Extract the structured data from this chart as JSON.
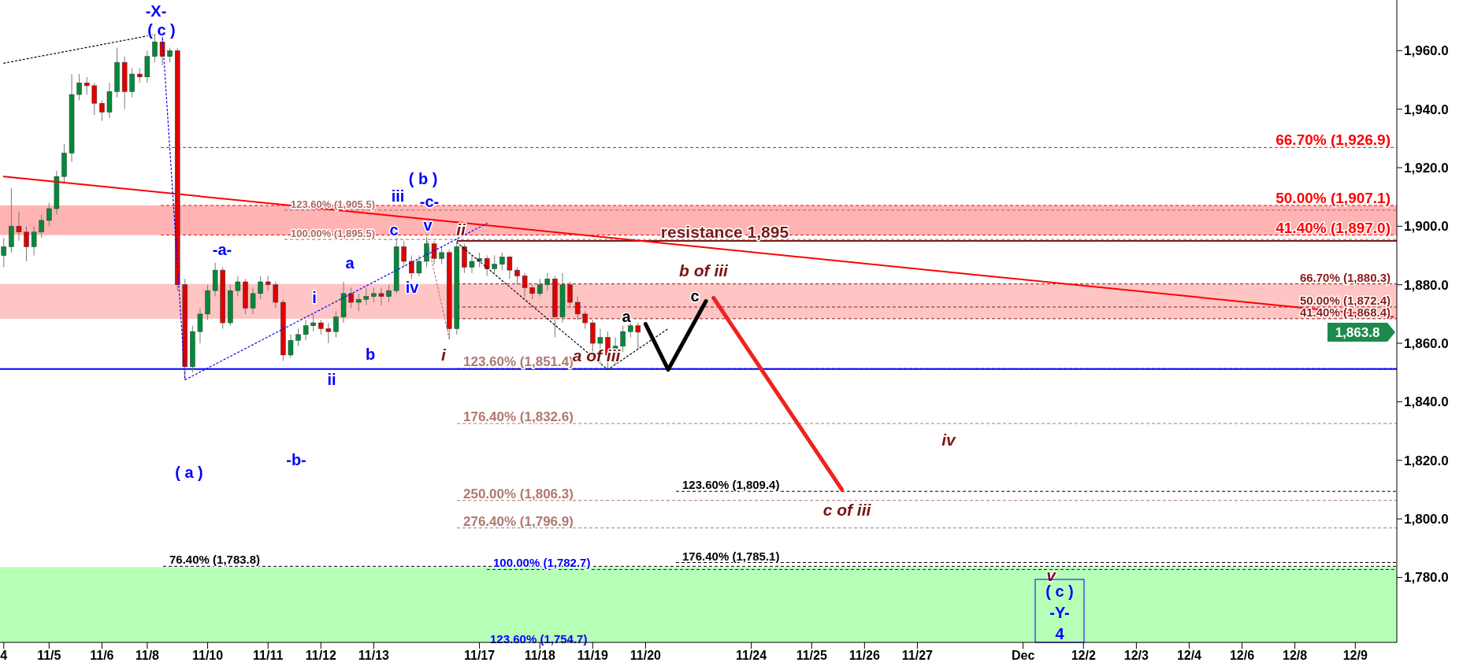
{
  "chart_data": {
    "type": "candlestick",
    "categories": [
      "4",
      null,
      null,
      null,
      null,
      null,
      "11/5",
      null,
      null,
      null,
      null,
      null,
      null,
      "11/6",
      null,
      null,
      null,
      null,
      null,
      "11/8",
      null,
      null,
      null,
      null,
      null,
      null,
      null,
      "11/10",
      null,
      null,
      null,
      null,
      null,
      null,
      null,
      "11/11",
      null,
      null,
      null,
      null,
      null,
      null,
      "11/12",
      null,
      null,
      null,
      null,
      null,
      null,
      "11/13",
      null,
      null,
      null,
      null,
      null,
      null,
      null,
      null,
      null,
      null,
      null,
      null,
      null,
      "11/17",
      null,
      null,
      null,
      null,
      null,
      null,
      null,
      "11/18",
      null,
      null,
      null,
      null,
      null,
      null,
      "11/19",
      null,
      null,
      null,
      null,
      null,
      null,
      "11/20",
      null,
      null,
      null,
      null,
      null,
      null,
      null,
      null,
      null,
      null,
      null,
      null,
      null,
      "11/24",
      null,
      null,
      null,
      null,
      null,
      null,
      null,
      "11/25",
      null,
      null,
      null,
      null,
      null,
      null,
      "11/26",
      null,
      null,
      null,
      null,
      null,
      null,
      "11/27",
      null,
      null,
      null,
      null,
      null,
      null,
      null,
      null,
      null,
      null,
      null,
      null,
      null,
      "Dec",
      null,
      null,
      null,
      null,
      null,
      null,
      null,
      "12/2",
      null,
      null,
      null,
      null,
      null,
      null,
      "12/3",
      null,
      null,
      null,
      null,
      null,
      null,
      "12/4",
      null,
      null,
      null,
      null,
      null,
      null,
      "12/6",
      null,
      null,
      null,
      null,
      null,
      null,
      "12/8",
      null,
      null,
      null,
      null,
      null,
      null,
      null,
      "12/9",
      null,
      null,
      null,
      null,
      null
    ],
    "ylim": [
      1757.8,
      1977.3
    ],
    "yticks": [
      {
        "value": 1780,
        "label": "1,780.0"
      },
      {
        "value": 1800,
        "label": "1,800.0"
      },
      {
        "value": 1820,
        "label": "1,820.0"
      },
      {
        "value": 1840,
        "label": "1,840.0"
      },
      {
        "value": 1860,
        "label": "1,860.0"
      },
      {
        "value": 1880,
        "label": "1,880.0"
      },
      {
        "value": 1900,
        "label": "1,900.0"
      },
      {
        "value": 1920,
        "label": "1,920.0"
      },
      {
        "value": 1940,
        "label": "1,940.0"
      },
      {
        "value": 1960,
        "label": "1,960.0"
      }
    ],
    "ohlc": [
      [
        1890,
        1896,
        1886,
        1893
      ],
      [
        1893,
        1913,
        1891,
        1900
      ],
      [
        1900,
        1905,
        1895,
        1898
      ],
      [
        1898,
        1900,
        1888,
        1893
      ],
      [
        1893,
        1900,
        1890,
        1898
      ],
      [
        1898,
        1904,
        1896,
        1902
      ],
      [
        1902,
        1908,
        1900,
        1906
      ],
      [
        1906,
        1919,
        1904,
        1917
      ],
      [
        1917,
        1928,
        1915,
        1925
      ],
      [
        1925,
        1952,
        1922,
        1945
      ],
      [
        1945,
        1952,
        1943,
        1949
      ],
      [
        1949,
        1951,
        1945,
        1948
      ],
      [
        1948,
        1949,
        1938,
        1942
      ],
      [
        1942,
        1943,
        1936,
        1939
      ],
      [
        1939,
        1949,
        1937,
        1946
      ],
      [
        1946,
        1961,
        1944,
        1956
      ],
      [
        1956,
        1958,
        1940,
        1946
      ],
      [
        1946,
        1954,
        1944,
        1952
      ],
      [
        1952,
        1954,
        1949,
        1951
      ],
      [
        1951,
        1960,
        1949,
        1958
      ],
      [
        1958,
        1965.5,
        1956,
        1963
      ],
      [
        1963,
        1965,
        1955,
        1958
      ],
      [
        1958,
        1961,
        1956,
        1960
      ],
      [
        1960,
        1961,
        1878,
        1880
      ],
      [
        1880,
        1882,
        1847.5,
        1852
      ],
      [
        1852,
        1866,
        1850,
        1864
      ],
      [
        1864,
        1872,
        1860,
        1870
      ],
      [
        1870,
        1880,
        1868,
        1878
      ],
      [
        1878,
        1887.5,
        1876,
        1885
      ],
      [
        1885,
        1886,
        1865,
        1867
      ],
      [
        1867,
        1880,
        1866,
        1878
      ],
      [
        1878,
        1883,
        1876,
        1881
      ],
      [
        1881,
        1882,
        1870,
        1872
      ],
      [
        1872,
        1879,
        1870,
        1877
      ],
      [
        1877,
        1883,
        1875,
        1881
      ],
      [
        1881,
        1883,
        1878,
        1880
      ],
      [
        1880,
        1881,
        1872,
        1874
      ],
      [
        1874,
        1875,
        1854,
        1856
      ],
      [
        1856,
        1863,
        1855,
        1861
      ],
      [
        1861,
        1865,
        1859,
        1863
      ],
      [
        1863,
        1868,
        1861,
        1866
      ],
      [
        1866,
        1870,
        1864,
        1867
      ],
      [
        1867,
        1868,
        1863,
        1865
      ],
      [
        1865,
        1867,
        1860,
        1864
      ],
      [
        1864,
        1871,
        1862,
        1869
      ],
      [
        1869,
        1881,
        1867,
        1877
      ],
      [
        1877,
        1879,
        1872,
        1874
      ],
      [
        1874,
        1877,
        1871,
        1875
      ],
      [
        1875,
        1879,
        1873,
        1876
      ],
      [
        1876,
        1879,
        1874,
        1877
      ],
      [
        1877,
        1879,
        1873,
        1876
      ],
      [
        1876,
        1880,
        1874,
        1878
      ],
      [
        1878,
        1896,
        1877,
        1893
      ],
      [
        1893,
        1895,
        1886,
        1888
      ],
      [
        1888,
        1890,
        1882,
        1884
      ],
      [
        1884,
        1890,
        1883,
        1888
      ],
      [
        1888,
        1896.2,
        1886,
        1894
      ],
      [
        1894,
        1895,
        1887,
        1889
      ],
      [
        1889,
        1893,
        1887,
        1891
      ],
      [
        1891,
        1892,
        1861.5,
        1865
      ],
      [
        1865,
        1894.5,
        1863,
        1893
      ],
      [
        1893,
        1894,
        1884,
        1886
      ],
      [
        1886,
        1890,
        1884,
        1888
      ],
      [
        1888,
        1891,
        1886,
        1889
      ],
      [
        1889,
        1890,
        1883,
        1885.5
      ],
      [
        1885.5,
        1890,
        1884,
        1887
      ],
      [
        1887,
        1891,
        1885,
        1889.5
      ],
      [
        1889.5,
        1890,
        1882,
        1885
      ],
      [
        1885,
        1886,
        1880,
        1883
      ],
      [
        1883,
        1884,
        1876,
        1879
      ],
      [
        1879,
        1880,
        1875,
        1877
      ],
      [
        1877,
        1882,
        1876,
        1880
      ],
      [
        1880,
        1884,
        1878,
        1882
      ],
      [
        1882,
        1883,
        1862,
        1869
      ],
      [
        1869,
        1884,
        1867,
        1880
      ],
      [
        1880,
        1881,
        1872,
        1874
      ],
      [
        1874,
        1876,
        1868,
        1870
      ],
      [
        1870,
        1871,
        1865,
        1867
      ],
      [
        1867,
        1868,
        1854,
        1860
      ],
      [
        1860,
        1865,
        1853,
        1862
      ],
      [
        1862,
        1864,
        1851,
        1856
      ],
      [
        1856,
        1862,
        1853,
        1859
      ],
      [
        1859,
        1866,
        1857,
        1864
      ],
      [
        1864,
        1867,
        1862,
        1866
      ],
      [
        1866,
        1867,
        1858,
        1863.8
      ],
      null,
      null,
      null,
      null,
      null,
      null,
      null,
      null,
      null,
      null,
      null,
      null,
      null,
      null,
      null,
      null,
      null,
      null,
      null,
      null,
      null,
      null,
      null,
      null,
      null,
      null,
      null,
      null,
      null,
      null,
      null,
      null,
      null,
      null,
      null,
      null,
      null,
      null,
      null,
      null,
      null,
      null,
      null,
      null,
      null,
      null,
      null,
      null,
      null,
      null,
      null,
      null,
      null,
      null,
      null,
      null,
      null,
      null,
      null,
      null,
      null,
      null,
      null,
      null,
      null,
      null,
      null,
      null,
      null,
      null,
      null,
      null,
      null,
      null,
      null,
      null,
      null,
      null,
      null,
      null,
      null,
      null,
      null,
      null,
      null,
      null,
      null,
      null,
      null,
      null,
      null,
      null,
      null,
      null,
      null,
      null,
      null,
      null,
      null,
      null
    ],
    "series": [
      {
        "type": "line",
        "color": "#ff0000",
        "line_style": "solid",
        "values": [
          1917.0,
          null,
          null,
          null,
          null,
          null,
          null,
          null,
          null,
          null,
          null,
          null,
          null,
          null,
          null,
          null,
          null,
          null,
          null,
          null,
          null,
          null,
          null,
          null,
          null,
          null,
          null,
          null,
          null,
          null,
          null,
          null,
          null,
          null,
          null,
          null,
          null,
          null,
          null,
          null,
          null,
          null,
          null,
          null,
          null,
          null,
          null,
          null,
          null,
          null,
          null,
          null,
          null,
          null,
          null,
          null,
          null,
          null,
          null,
          null,
          null,
          null,
          null,
          null,
          null,
          null,
          null,
          null,
          null,
          null,
          null,
          null,
          null,
          null,
          null,
          null,
          null,
          null,
          null,
          null,
          null,
          null,
          null,
          null,
          null,
          null,
          null,
          null,
          null,
          null,
          null,
          null,
          null,
          null,
          null,
          null,
          null,
          null,
          null,
          null,
          null,
          null,
          null,
          null,
          null,
          null,
          null,
          null,
          null,
          null,
          null,
          null,
          null,
          null,
          null,
          null,
          null,
          null,
          null,
          null,
          null,
          null,
          null,
          null,
          null,
          null,
          null,
          null,
          null,
          null,
          null,
          null,
          null,
          null,
          null,
          null,
          null,
          null,
          null,
          null,
          null,
          null,
          null,
          null,
          null,
          null,
          null,
          null,
          null,
          null,
          null,
          null,
          null,
          null,
          null,
          null,
          null,
          null,
          null,
          null,
          null,
          null,
          null,
          null,
          null,
          null,
          null,
          null,
          null,
          null,
          null,
          null,
          null,
          null,
          null,
          null,
          null,
          null,
          null,
          null,
          null,
          null,
          null,
          null,
          1869.0
        ]
      },
      {
        "type": "line",
        "color": "#000000",
        "line_style": "dotted",
        "values": [
          1955.7,
          null,
          null,
          null,
          null,
          null,
          null,
          null,
          null,
          null,
          null,
          null,
          null,
          null,
          null,
          null,
          null,
          null,
          null,
          null,
          1965.5,
          null,
          null,
          null,
          null,
          null,
          null,
          null,
          null,
          null,
          null,
          null,
          null,
          null,
          null,
          null,
          null,
          null,
          null,
          null,
          null,
          null,
          null,
          null,
          null,
          null,
          null,
          null,
          null,
          null,
          null,
          null,
          null,
          null,
          null,
          null,
          null,
          null,
          null,
          null,
          null,
          null,
          null,
          null,
          null,
          null,
          null,
          null,
          null,
          null,
          null,
          null,
          null,
          null,
          null,
          null,
          null,
          null,
          null,
          null,
          null,
          null,
          null,
          null,
          null,
          null,
          null,
          null,
          null,
          null,
          null,
          null,
          null,
          null,
          null,
          null,
          null,
          null,
          null,
          null,
          null,
          null,
          null,
          null,
          null,
          null,
          null,
          null,
          null,
          null,
          null,
          null,
          null,
          null,
          null,
          null,
          null,
          null,
          null,
          null,
          null,
          null,
          null,
          null,
          null,
          null,
          null,
          null,
          null,
          null,
          null,
          null,
          null,
          null,
          null,
          null,
          null,
          null,
          null,
          null,
          null,
          null,
          null,
          null,
          null,
          null,
          null,
          null,
          null,
          null,
          null,
          null,
          null,
          null,
          null,
          null,
          null,
          null,
          null,
          null,
          null,
          null,
          null,
          null,
          null,
          null,
          null,
          null,
          null,
          null,
          null,
          null,
          null,
          null,
          null,
          null,
          null,
          null,
          null,
          null,
          null,
          null,
          null,
          null,
          null
        ]
      },
      {
        "type": "line",
        "color": "#0000ff",
        "line_style": "dotted",
        "values": [
          null,
          null,
          null,
          null,
          null,
          null,
          null,
          null,
          null,
          null,
          null,
          null,
          null,
          null,
          null,
          null,
          null,
          null,
          null,
          null,
          null,
          1965.5,
          null,
          null,
          1847.5,
          null,
          null,
          null,
          null,
          null,
          null,
          null,
          null,
          null,
          null,
          null,
          null,
          null,
          null,
          null,
          null,
          null,
          null,
          null,
          null,
          null,
          null,
          null,
          null,
          null,
          null,
          null,
          null,
          null,
          null,
          null,
          null,
          null,
          null,
          null,
          null,
          null,
          null,
          null,
          1901,
          null,
          null,
          null,
          null,
          null,
          null,
          null,
          null,
          null,
          null,
          null,
          null,
          null,
          null,
          null,
          null,
          null,
          null,
          null,
          null,
          null,
          null,
          null,
          null,
          null,
          null,
          null,
          null,
          null,
          null,
          null,
          null,
          null,
          null,
          null,
          null,
          null,
          null,
          null,
          null,
          null,
          null,
          null,
          null,
          null,
          null,
          null,
          null,
          null,
          null,
          null,
          null,
          null,
          null,
          null,
          null,
          null,
          null,
          null,
          null,
          null,
          null,
          null,
          null,
          null,
          null,
          null,
          null,
          null,
          null,
          null,
          null,
          null,
          null,
          null,
          null,
          null,
          null,
          null,
          null,
          null,
          null,
          null,
          null,
          null,
          null,
          null,
          null,
          null,
          null,
          null,
          null,
          null,
          null,
          null,
          null,
          null,
          null,
          null,
          null,
          null,
          null,
          null,
          null,
          null,
          null,
          null,
          null,
          null,
          null,
          null,
          null,
          null,
          null,
          null,
          null,
          null,
          null,
          null,
          null
        ]
      },
      {
        "type": "line",
        "color": "#b07870",
        "line_style": "dotted",
        "values": [
          null,
          null,
          null,
          null,
          null,
          null,
          null,
          null,
          null,
          null,
          null,
          null,
          null,
          null,
          null,
          null,
          null,
          null,
          null,
          null,
          null,
          null,
          null,
          null,
          null,
          null,
          null,
          null,
          null,
          null,
          null,
          null,
          null,
          null,
          null,
          null,
          null,
          null,
          null,
          null,
          null,
          null,
          null,
          null,
          null,
          null,
          null,
          null,
          null,
          null,
          null,
          null,
          null,
          null,
          null,
          null,
          1896.2,
          null,
          null,
          1861.5,
          null,
          null,
          null,
          null,
          null,
          null,
          null,
          null,
          null,
          null,
          null,
          null,
          null,
          null,
          null,
          null,
          null,
          null,
          null,
          null,
          null,
          null,
          null,
          null,
          null,
          null,
          null,
          null,
          null,
          null,
          null,
          null,
          null,
          null,
          null,
          null,
          null,
          null,
          null,
          null,
          null,
          null,
          null,
          null,
          null,
          null,
          null,
          null,
          null,
          null,
          null,
          null,
          null,
          null,
          null,
          null,
          null,
          null,
          null,
          null,
          null,
          null,
          null,
          null,
          null,
          null,
          null,
          null,
          null,
          null,
          null,
          null,
          null,
          null,
          null,
          null,
          null,
          null,
          null,
          null,
          null,
          null,
          null,
          null,
          null,
          null,
          null,
          null,
          null,
          null,
          null,
          null,
          null,
          null,
          null,
          null,
          null,
          null,
          null,
          null,
          null,
          null,
          null,
          null,
          null,
          null,
          null,
          null,
          null,
          null,
          null,
          null,
          null,
          null,
          null,
          null,
          null,
          null,
          null,
          null,
          null,
          null,
          null,
          null,
          null
        ]
      },
      {
        "type": "line",
        "color": "#000000",
        "line_style": "dotted",
        "values": [
          null,
          null,
          null,
          null,
          null,
          null,
          null,
          null,
          null,
          null,
          null,
          null,
          null,
          null,
          null,
          null,
          null,
          null,
          null,
          null,
          null,
          null,
          null,
          null,
          null,
          null,
          null,
          null,
          null,
          null,
          null,
          null,
          null,
          null,
          null,
          null,
          null,
          null,
          null,
          null,
          null,
          null,
          null,
          null,
          null,
          null,
          null,
          null,
          null,
          null,
          null,
          null,
          null,
          null,
          null,
          null,
          null,
          null,
          null,
          null,
          1894.5,
          null,
          null,
          null,
          null,
          null,
          null,
          null,
          null,
          null,
          null,
          null,
          null,
          null,
          null,
          null,
          null,
          null,
          null,
          null,
          1851,
          null,
          null,
          null,
          null,
          null,
          null,
          null,
          1865,
          null,
          null,
          null,
          null,
          null,
          null,
          null,
          null,
          null,
          null,
          null,
          null,
          null,
          null,
          null,
          null,
          null,
          null,
          null,
          null,
          null,
          null,
          null,
          null,
          null,
          null,
          null,
          null,
          null,
          null,
          null,
          null,
          null,
          null,
          null,
          null,
          null,
          null,
          null,
          null,
          null,
          null,
          null,
          null,
          null,
          null,
          null,
          null,
          null,
          null,
          null,
          null,
          null,
          null,
          null,
          null,
          null,
          null,
          null,
          null,
          null,
          null,
          null,
          null,
          null,
          null,
          null,
          null,
          null,
          null,
          null,
          null,
          null,
          null,
          null,
          null,
          null,
          null,
          null,
          null,
          null,
          null,
          null,
          null,
          null,
          null,
          null,
          null,
          null,
          null,
          null,
          null,
          null,
          null,
          null,
          null
        ]
      },
      {
        "type": "line",
        "color": "#000000",
        "line_style": "solid",
        "values": [
          null,
          null,
          null,
          null,
          null,
          null,
          null,
          null,
          null,
          null,
          null,
          null,
          null,
          null,
          null,
          null,
          null,
          null,
          null,
          null,
          null,
          null,
          null,
          null,
          null,
          null,
          null,
          null,
          null,
          null,
          null,
          null,
          null,
          null,
          null,
          null,
          null,
          null,
          null,
          null,
          null,
          null,
          null,
          null,
          null,
          null,
          null,
          null,
          null,
          null,
          null,
          null,
          null,
          null,
          null,
          null,
          null,
          null,
          null,
          null,
          null,
          null,
          null,
          null,
          null,
          null,
          null,
          null,
          null,
          null,
          null,
          null,
          null,
          null,
          null,
          null,
          null,
          null,
          null,
          null,
          null,
          null,
          null,
          null,
          null,
          1866.6,
          null,
          null,
          1851,
          null,
          null,
          null,
          null,
          1874.4,
          null,
          null,
          null,
          null,
          null,
          null,
          null,
          null,
          null,
          null,
          null,
          null,
          null,
          null,
          null,
          null,
          null,
          null,
          null,
          null,
          null,
          null,
          null,
          null,
          null,
          null,
          null,
          null,
          null,
          null,
          null,
          null,
          null,
          null,
          null,
          null,
          null,
          null,
          null,
          null,
          null,
          null,
          null,
          null,
          null,
          null,
          null,
          null,
          null,
          null,
          null,
          null,
          null,
          null,
          null,
          null,
          null,
          null,
          null,
          null,
          null,
          null,
          null,
          null,
          null,
          null,
          null,
          null,
          null,
          null,
          null,
          null,
          null,
          null,
          null,
          null,
          null,
          null,
          null,
          null,
          null,
          null,
          null,
          null,
          null,
          null,
          null,
          null,
          null,
          null,
          null
        ]
      },
      {
        "type": "line",
        "color": "#ee2222",
        "line_style": "solid",
        "values": [
          null,
          null,
          null,
          null,
          null,
          null,
          null,
          null,
          null,
          null,
          null,
          null,
          null,
          null,
          null,
          null,
          null,
          null,
          null,
          null,
          null,
          null,
          null,
          null,
          null,
          null,
          null,
          null,
          null,
          null,
          null,
          null,
          null,
          null,
          null,
          null,
          null,
          null,
          null,
          null,
          null,
          null,
          null,
          null,
          null,
          null,
          null,
          null,
          null,
          null,
          null,
          null,
          null,
          null,
          null,
          null,
          null,
          null,
          null,
          null,
          null,
          null,
          null,
          null,
          null,
          null,
          null,
          null,
          null,
          null,
          null,
          null,
          null,
          null,
          null,
          null,
          null,
          null,
          null,
          null,
          null,
          null,
          null,
          null,
          null,
          null,
          null,
          null,
          null,
          null,
          null,
          null,
          null,
          null,
          1875.5,
          null,
          null,
          null,
          null,
          null,
          null,
          null,
          null,
          null,
          null,
          null,
          null,
          null,
          null,
          null,
          null,
          1810,
          null,
          null,
          null,
          null,
          null,
          null,
          null,
          null,
          null,
          null,
          null,
          null,
          null,
          null,
          null,
          null,
          null,
          null,
          null,
          null,
          null,
          null,
          null,
          null,
          null,
          null,
          null,
          null,
          null,
          null,
          null,
          null,
          null,
          null,
          null,
          null,
          null,
          null,
          null,
          null,
          null,
          null,
          null,
          null,
          null,
          null,
          null,
          null,
          null,
          null,
          null,
          null,
          null,
          null,
          null,
          null,
          null,
          null,
          null,
          null,
          null,
          null,
          null,
          null,
          null,
          null,
          null,
          null,
          null,
          null,
          null,
          null,
          null
        ]
      }
    ],
    "bands": [
      {
        "axis": "y",
        "from": 1897,
        "to": 1907.1,
        "color": "#ffb3b3"
      },
      {
        "axis": "y",
        "from": 1868.4,
        "to": 1880.3,
        "color": "#ffc4c4"
      },
      {
        "axis": "y",
        "from": 1757.8,
        "to": 1783.5,
        "color": "#b6ffb6"
      }
    ],
    "ref_lines": [
      {
        "axis": "y",
        "value": 1926.9,
        "label": "66.70% (1,926.9)",
        "color": "#ff0000",
        "line_style": "dashed"
      },
      {
        "axis": "y",
        "value": 1907.1,
        "label": "50.00% (1,907.1)",
        "color": "#ff0000",
        "line_style": "dashed"
      },
      {
        "axis": "y",
        "value": 1897.0,
        "label": "41.40% (1,897.0)",
        "color": "#ff0000",
        "line_style": "dashed"
      },
      {
        "axis": "y",
        "value": 1905.5,
        "label": "123.60% (1,905.5)",
        "color": "#a86a62",
        "line_style": "dashed"
      },
      {
        "axis": "y",
        "value": 1895.5,
        "label": "100.00% (1,895.5)",
        "color": "#a86a62",
        "line_style": "dashed"
      },
      {
        "axis": "y",
        "value": 1895,
        "label": "resistance 1,895",
        "color": "#7a1a1a",
        "line_style": "solid"
      },
      {
        "axis": "y",
        "value": 1880.3,
        "label": "66.70% (1,880.3)",
        "color": "#8b1a1a",
        "line_style": "dashed"
      },
      {
        "axis": "y",
        "value": 1872.4,
        "label": "50.00% (1,872.4)",
        "color": "#8b1a1a",
        "line_style": "dashed"
      },
      {
        "axis": "y",
        "value": 1868.4,
        "label": "41.40% (1,868.4)",
        "color": "#8b1a1a",
        "line_style": "dashed"
      },
      {
        "axis": "y",
        "value": 1851.4,
        "label": "123.60% (1,851.4)",
        "color": "#b07870",
        "line_style": "dashed"
      },
      {
        "axis": "y",
        "value": 1851.2,
        "color": "#0000ff",
        "line_style": "solid"
      },
      {
        "axis": "y",
        "value": 1832.6,
        "label": "176.40% (1,832.6)",
        "color": "#b07870",
        "line_style": "dashed"
      },
      {
        "axis": "y",
        "value": 1806.3,
        "label": "250.00% (1,806.3)",
        "color": "#b07870",
        "line_style": "dashed"
      },
      {
        "axis": "y",
        "value": 1796.9,
        "label": "276.40% (1,796.9)",
        "color": "#b07870",
        "line_style": "dashed"
      },
      {
        "axis": "y",
        "value": 1809.4,
        "label": "123.60% (1,809.4)",
        "color": "#000000",
        "line_style": "dashed"
      },
      {
        "axis": "y",
        "value": 1785.1,
        "label": "176.40% (1,785.1)",
        "color": "#000000",
        "line_style": "dashed"
      },
      {
        "axis": "y",
        "value": 1783.8,
        "label": "76.40% (1,783.8)",
        "color": "#000000",
        "line_style": "dashed"
      },
      {
        "axis": "y",
        "value": 1782.7,
        "label": "100.00% (1,782.7)",
        "color": "#0000ff",
        "line_style": "dashed"
      }
    ],
    "annotations": [
      "-X-",
      "( c )",
      "( a )",
      "-a-",
      "-b-",
      "i",
      "ii",
      "a",
      "b",
      "c",
      "iii",
      "iv",
      "( b )",
      "-c-",
      "v",
      "ii",
      "i",
      "a of iii",
      "a",
      "b of iii",
      "c",
      "iv",
      "c of iii",
      "v",
      "( c )\n-Y-\n4",
      "123.60% (1,754.7)",
      "1,863.8"
    ]
  }
}
